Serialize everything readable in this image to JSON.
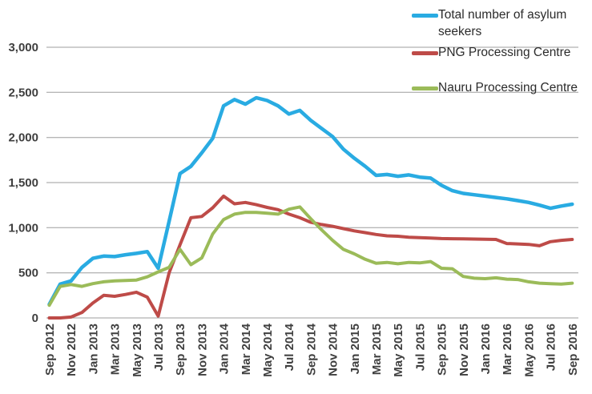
{
  "chart_data": {
    "type": "line",
    "title": "",
    "xlabel": "",
    "ylabel": "",
    "ylim": [
      0,
      3000
    ],
    "ytick_values": [
      0,
      500,
      1000,
      1500,
      2000,
      2500,
      3000
    ],
    "ytick_labels": [
      "0",
      "500",
      "1,000",
      "1,500",
      "2,000",
      "2,500",
      "3,000"
    ],
    "gridlines": "horizontal",
    "gridline_color": "#9d9d9d",
    "axis_text_color": "#3f3f3f",
    "background_color": "#ffffff",
    "legend_position": "top-right",
    "x_tick_step": 2,
    "x": [
      "Sep 2012",
      "Oct 2012",
      "Nov 2012",
      "Dec 2012",
      "Jan 2013",
      "Feb 2013",
      "Mar 2013",
      "Apr 2013",
      "May 2013",
      "Jun 2013",
      "Jul 2013",
      "Aug 2013",
      "Sep 2013",
      "Oct 2013",
      "Nov 2013",
      "Dec 2013",
      "Jan 2014",
      "Feb 2014",
      "Mar 2014",
      "Apr 2014",
      "May 2014",
      "Jun 2014",
      "Jul 2014",
      "Aug 2014",
      "Sep 2014",
      "Oct 2014",
      "Nov 2014",
      "Dec 2014",
      "Jan 2015",
      "Feb 2015",
      "Mar 2015",
      "Apr 2015",
      "May 2015",
      "Jun 2015",
      "Jul 2015",
      "Aug 2015",
      "Sep 2015",
      "Oct 2015",
      "Nov 2015",
      "Dec 2015",
      "Jan 2016",
      "Feb 2016",
      "Mar 2016",
      "Apr 2016",
      "May 2016",
      "Jun 2016",
      "Jul 2016",
      "Aug 2016",
      "Sep 2016"
    ],
    "visible_x_tick_labels": [
      "Sep 2012",
      "Nov 2012",
      "Jan 2013",
      "Mar 2013",
      "May 2013",
      "Jul 2013",
      "Sep 2013",
      "Nov 2013",
      "Jan 2014",
      "Mar 2014",
      "May 2014",
      "Jul 2014",
      "Sep 2014",
      "Nov 2014",
      "Jan 2015",
      "Mar 2015",
      "May 2015",
      "Jul 2015",
      "Sep 2015",
      "Nov 2015",
      "Jan 2016",
      "Mar 2016",
      "May 2016",
      "Jul 2016",
      "Sep 2016"
    ],
    "series": [
      {
        "name": "Total number of asylum seekers",
        "color": "#29abe2",
        "stroke_width": 4.5,
        "values": [
          150,
          375,
          410,
          560,
          660,
          685,
          680,
          700,
          715,
          735,
          550,
          1070,
          1600,
          1680,
          1830,
          1990,
          2350,
          2420,
          2370,
          2440,
          2410,
          2350,
          2260,
          2300,
          2190,
          2100,
          2010,
          1870,
          1770,
          1680,
          1580,
          1590,
          1570,
          1585,
          1560,
          1550,
          1470,
          1410,
          1380,
          1365,
          1350,
          1335,
          1320,
          1300,
          1280,
          1250,
          1215,
          1240,
          1260
        ]
      },
      {
        "name": "PNG Processing Centre",
        "color": "#be4b48",
        "stroke_width": 4,
        "values": [
          0,
          0,
          10,
          60,
          165,
          250,
          240,
          260,
          285,
          230,
          20,
          500,
          810,
          1110,
          1125,
          1220,
          1350,
          1265,
          1280,
          1255,
          1225,
          1200,
          1150,
          1110,
          1060,
          1035,
          1015,
          990,
          965,
          945,
          925,
          910,
          905,
          895,
          890,
          885,
          880,
          878,
          876,
          874,
          872,
          870,
          825,
          820,
          815,
          800,
          845,
          860,
          870
        ]
      },
      {
        "name": "Nauru Processing Centre",
        "color": "#9bbb59",
        "stroke_width": 4,
        "values": [
          140,
          350,
          370,
          350,
          380,
          400,
          410,
          415,
          420,
          455,
          510,
          560,
          760,
          590,
          665,
          930,
          1090,
          1150,
          1170,
          1170,
          1160,
          1150,
          1205,
          1230,
          1100,
          975,
          860,
          760,
          710,
          650,
          605,
          615,
          600,
          615,
          610,
          625,
          550,
          545,
          460,
          440,
          435,
          445,
          430,
          425,
          400,
          385,
          380,
          375,
          385
        ]
      }
    ]
  }
}
